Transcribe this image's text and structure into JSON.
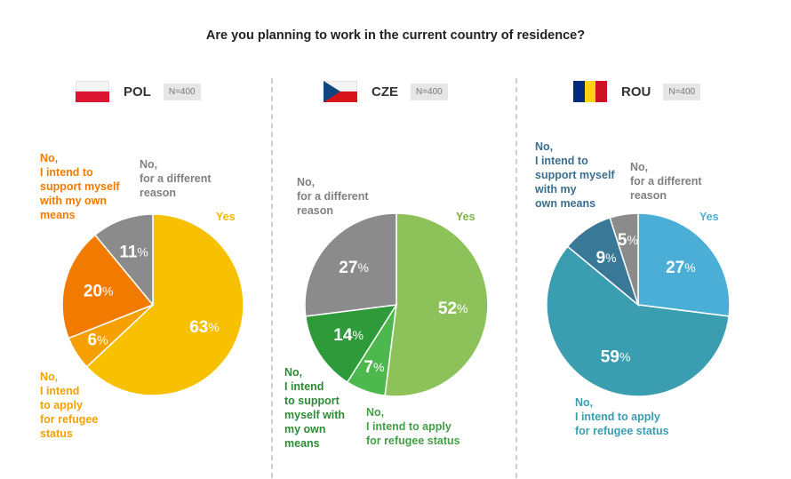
{
  "title": "Are you planning to work in the current country of residence?",
  "panels": [
    {
      "code": "POL",
      "n": "N=400"
    },
    {
      "code": "CZE",
      "n": "N=400"
    },
    {
      "code": "ROU",
      "n": "N=400"
    }
  ],
  "colors": {
    "pol": [
      "#f7c000",
      "#f5a000",
      "#f07b00",
      "#8b8b8b"
    ],
    "cze": [
      "#8dc15a",
      "#4db84d",
      "#2e9a3a",
      "#8b8b8b"
    ],
    "rou": [
      "#4aaed6",
      "#3a9db0",
      "#3a7898",
      "#8b8b8b"
    ]
  },
  "labels": {
    "pol": {
      "yes": "Yes",
      "refugee": "No,\nI intend\nto apply\nfor refugee\nstatus",
      "own": "No,\nI intend to\nsupport myself\nwith my own\nmeans",
      "diff": "No,\nfor a different\nreason"
    },
    "cze": {
      "yes": "Yes",
      "refugee": "No,\nI intend to apply\nfor refugee status",
      "own": "No,\nI intend\nto support\nmyself with\nmy own\nmeans",
      "diff": "No,\nfor a different\nreason"
    },
    "rou": {
      "yes": "Yes",
      "refugee": "No,\nI intend to apply\nfor refugee status",
      "own": "No,\nI intend to\nsupport myself\nwith my\nown means",
      "diff": "No,\nfor a different\nreason"
    }
  },
  "chart_data": [
    {
      "type": "pie",
      "title": "POL",
      "categories": [
        "Yes",
        "No, I intend to apply for refugee status",
        "No, I intend to support myself with my own means",
        "No, for a different reason"
      ],
      "values": [
        63,
        6,
        20,
        11
      ],
      "unit": "%"
    },
    {
      "type": "pie",
      "title": "CZE",
      "categories": [
        "Yes",
        "No, I intend to apply for refugee status",
        "No, I intend to support myself with my own means",
        "No, for a different reason"
      ],
      "values": [
        52,
        7,
        14,
        27
      ],
      "unit": "%"
    },
    {
      "type": "pie",
      "title": "ROU",
      "categories": [
        "Yes",
        "No, I intend to apply for refugee status",
        "No, I intend to support myself with my own means",
        "No, for a different reason"
      ],
      "values": [
        27,
        59,
        9,
        5
      ],
      "unit": "%"
    }
  ]
}
